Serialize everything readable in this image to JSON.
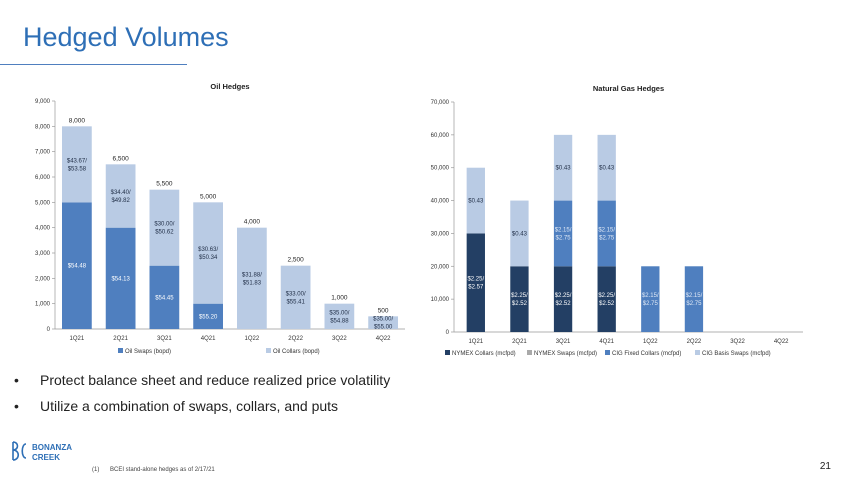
{
  "page": {
    "title": "Hedged Volumes",
    "bullets": [
      "Protect balance sheet and reduce realized price volatility",
      "Utilize a combination of swaps, collars, and puts"
    ],
    "bullet_symbol": "•",
    "footnote_number": "(1)",
    "footnote_text": "BCEI stand-alone hedges as of 2/17/21",
    "page_number": "21",
    "logo_text_line1": "BONANZA",
    "logo_text_line2": "CREEK"
  },
  "colors": {
    "title": "#2e6fb6",
    "oil_swaps": "#4f7fbf",
    "oil_collars": "#b9cbe4",
    "gas_nymex_collars": "#233f64",
    "gas_nymex_swaps": "#a9a9a9",
    "gas_cig_fixed_collars": "#4f7fbf",
    "gas_cig_basis_swaps": "#b9cbe4"
  },
  "chart_data": [
    {
      "type": "bar",
      "stacked": true,
      "title": "Oil Hedges",
      "categories": [
        "1Q21",
        "2Q21",
        "3Q21",
        "4Q21",
        "1Q22",
        "2Q22",
        "3Q22",
        "4Q22"
      ],
      "ylim": [
        0,
        9000
      ],
      "yticks": [
        "0",
        "1,000",
        "2,000",
        "3,000",
        "4,000",
        "5,000",
        "6,000",
        "7,000",
        "8,000",
        "9,000"
      ],
      "grid": false,
      "legend_position": "bottom",
      "series": [
        {
          "name": "Oil Swaps (bopd)",
          "values": [
            5000,
            4000,
            2500,
            1000,
            0,
            0,
            0,
            0
          ],
          "labels": [
            "$54.48",
            "$54.13",
            "$54.45",
            "$55.20",
            "",
            "",
            "",
            ""
          ]
        },
        {
          "name": "Oil Collars (bopd)",
          "values": [
            3000,
            2500,
            3000,
            4000,
            4000,
            2500,
            1000,
            500
          ],
          "labels": [
            [
              "$43.67/",
              "$53.58"
            ],
            [
              "$34.40/",
              "$49.82"
            ],
            [
              "$30.00/",
              "$50.62"
            ],
            [
              "$30.63/",
              "$50.34"
            ],
            [
              "$31.88/",
              "$51.83"
            ],
            [
              "$33.00/",
              "$55.41"
            ],
            [
              "$35.00/",
              "$54.88"
            ],
            [
              "$35.00/",
              "$55.00"
            ]
          ]
        }
      ],
      "totals": [
        "8,000",
        "6,500",
        "5,500",
        "5,000",
        "4,000",
        "2,500",
        "1,000",
        "500"
      ]
    },
    {
      "type": "bar",
      "stacked": true,
      "title": "Natural Gas Hedges",
      "categories": [
        "1Q21",
        "2Q21",
        "3Q21",
        "4Q21",
        "1Q22",
        "2Q22",
        "3Q22",
        "4Q22"
      ],
      "ylim": [
        0,
        70000
      ],
      "yticks": [
        "0",
        "10,000",
        "20,000",
        "30,000",
        "40,000",
        "50,000",
        "60,000",
        "70,000"
      ],
      "grid": false,
      "legend_position": "bottom",
      "series": [
        {
          "name": "NYMEX Collars (mcfpd)",
          "values": [
            30000,
            20000,
            20000,
            20000,
            0,
            0,
            0,
            0
          ],
          "labels": [
            [
              "$2.25/",
              "$2.57"
            ],
            [
              "$2.25/",
              "$2.52"
            ],
            [
              "$2.25/",
              "$2.52"
            ],
            [
              "$2.25/",
              "$2.52"
            ],
            "",
            "",
            "",
            ""
          ]
        },
        {
          "name": "NYMEX Swaps (mcfpd)",
          "values": [
            0,
            0,
            0,
            0,
            0,
            0,
            0,
            0
          ],
          "labels": [
            "",
            "",
            "",
            "",
            "",
            "",
            "",
            ""
          ]
        },
        {
          "name": "CIG Fixed Collars (mcfpd)",
          "values": [
            0,
            0,
            20000,
            20000,
            20000,
            20000,
            0,
            0
          ],
          "labels": [
            "",
            "",
            [
              "$2.15/",
              "$2.75"
            ],
            [
              "$2.15/",
              "$2.75"
            ],
            [
              "$2.15/",
              "$2.75"
            ],
            [
              "$2.15/",
              "$2.75"
            ],
            "",
            ""
          ]
        },
        {
          "name": "CIG Basis Swaps (mcfpd)",
          "values": [
            20000,
            20000,
            20000,
            20000,
            0,
            0,
            0,
            0
          ],
          "labels": [
            "$0.43",
            "$0.43",
            "$0.43",
            "$0.43",
            "",
            "",
            "",
            ""
          ]
        }
      ]
    }
  ]
}
